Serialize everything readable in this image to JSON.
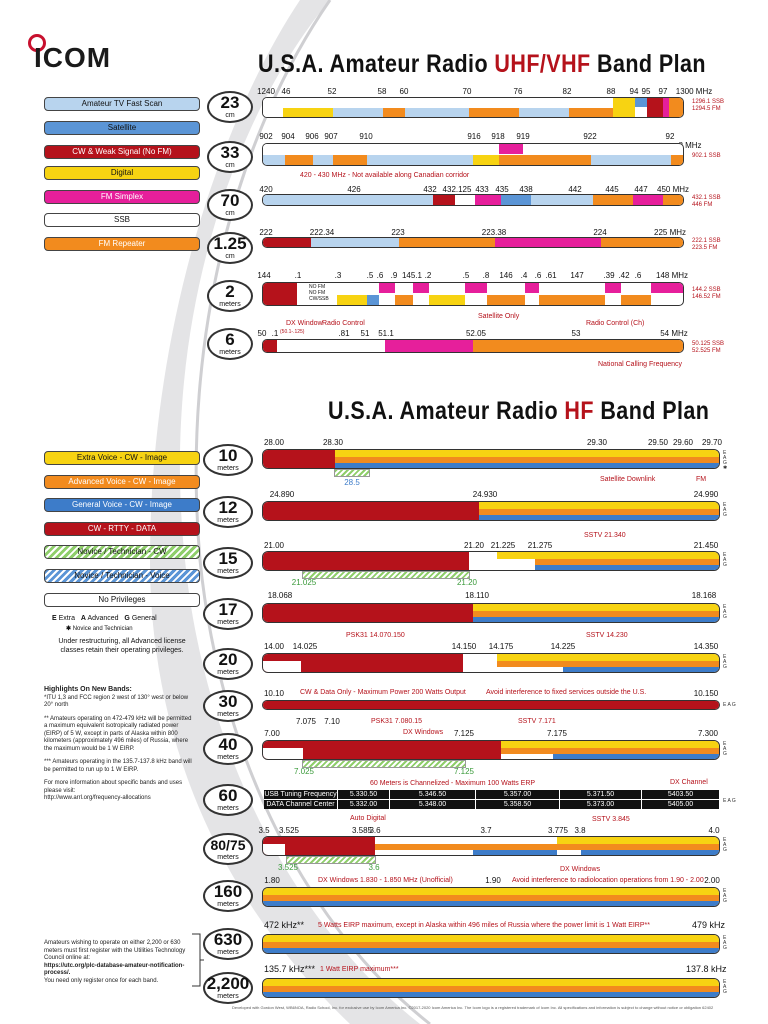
{
  "brand": {
    "logo": "ICOM"
  },
  "uhf_title": {
    "pre": "U.S.A. Amateur Radio ",
    "hl": "UHF/VHF",
    "post": " Band Plan"
  },
  "hf_title": {
    "pre": "U.S.A. Amateur Radio ",
    "hl": "HF",
    "post": " Band Plan"
  },
  "colors": {
    "tv": "#b8d4ee",
    "sat": "#5b95d6",
    "cw": "#b5121b",
    "digital": "#f7d312",
    "fm": "#e61f9b",
    "ssb": "#ffffff",
    "rep": "#f28b1e",
    "extra": "#f7d312",
    "adv": "#f28b1e",
    "gen": "#3d7cc9",
    "novice": "#8fce6b"
  },
  "uhf_legend": [
    "Amateur TV Fast Scan",
    "Satellite",
    "CW & Weak Signal (No FM)",
    "Digital",
    "FM Simplex",
    "SSB",
    "FM Repeater"
  ],
  "hf_legend": [
    "Extra Voice - CW - Image",
    "Advanced Voice - CW - Image",
    "General Voice - CW - Image",
    "CW - RTTY - DATA",
    "Novice / Technician - CW",
    "Novice / Technician - Voice",
    "No Privileges"
  ],
  "class_key": {
    "e": "E",
    "e_label": "Extra",
    "a": "A",
    "a_label": "Advanced",
    "g": "G",
    "g_label": "General",
    "star": "✱",
    "star_label": "Novice and Technician"
  },
  "restructure_note": "Under restructuring, all Advanced license classes retain their operating privileges.",
  "highlights": {
    "heading": "Highlights On New Bands:",
    "p1": "*ITU 1,3 and FCC region 2 west of 130° west or below 20° north",
    "p2": "** Amateurs operating on 472-479 kHz will be permitted a maximum equivalent isotropically radiated power (EIRP) of 5 W, except in parts of Alaska within 800 kilometers (approximately 496 miles) of Russia, where the maximum would be 1 W EIRP.",
    "p3": "*** Amateurs operating in the 135.7-137.8 kHz band will be permitted to run up to 1 W EIRP.",
    "p4": "For more information about specific bands and uses please visit:",
    "url": "http://www.arrl.org/frequency-allocations"
  },
  "register_note": {
    "p1": "Amateurs wishing to operate on either 2,200 or 630 meters must first register with the Utilities Technology Council online at:",
    "url": "https://utc.org/plc-database-amateur-notification-process/.",
    "p2": "You need only register once for each band."
  },
  "uhf_bands": [
    {
      "n": "23",
      "u": "cm",
      "ticks": [
        "1240",
        "46",
        "52",
        "58",
        "60",
        "70",
        "76",
        "82",
        "88",
        "94",
        "95",
        "97",
        "1300 MHz"
      ],
      "side": [
        "1296.1 SSB",
        "1294.5 FM"
      ]
    },
    {
      "n": "33",
      "u": "cm",
      "ticks": [
        "902",
        "904",
        "906",
        "907",
        "910",
        "916",
        "918",
        "919",
        "922",
        "92",
        "8 MHz"
      ],
      "side": [
        "902.1 SSB"
      ]
    },
    {
      "n": "70",
      "u": "cm",
      "ticks": [
        "420",
        "426",
        "432",
        "432.125",
        "433",
        "435",
        "438",
        "442",
        "445",
        "447",
        "450 MHz"
      ],
      "side": [
        "432.1 SSB",
        "446 FM"
      ],
      "note": "420 - 430 MHz - Not available along Canadian corridor"
    },
    {
      "n": "1.25",
      "u": "cm",
      "ticks": [
        "222",
        "222.34",
        "223",
        "223.38",
        "224",
        "225 MHz"
      ],
      "side": [
        "222.1 SSB",
        "223.5 FM"
      ]
    },
    {
      "n": "2",
      "u": "meters",
      "ticks": [
        "144",
        ".1",
        ".3",
        ".5",
        ".6",
        ".9",
        "145.1",
        ".2",
        ".5",
        ".8",
        "146",
        ".4",
        ".6",
        ".61",
        "147",
        ".39",
        ".42",
        ".6",
        "148 MHz"
      ],
      "side": [
        "144.2 SSB",
        "146.52 FM"
      ],
      "inner": [
        "NO FM",
        "NO FM",
        "CW/SSB"
      ],
      "note": "Satellite Only"
    },
    {
      "n": "6",
      "u": "meters",
      "ticks": [
        "50",
        ".1",
        ".81",
        "51",
        "51.1",
        "52.05",
        "53",
        "54 MHz"
      ],
      "side": [
        "50.125 SSB",
        "52.525 FM"
      ],
      "notes": [
        "DX Window",
        "(50.1-.125)",
        "Radio Control",
        "Radio Control (Ch)",
        "National Calling Frequency"
      ]
    }
  ],
  "hf_bands": [
    {
      "n": "10",
      "ticks": [
        "28.00",
        "28.30",
        "29.30",
        "29.50",
        "29.60",
        "29.70"
      ],
      "notes": [
        "28.5",
        "Satellite Downlink",
        "FM"
      ]
    },
    {
      "n": "12",
      "ticks": [
        "24.890",
        "24.930",
        "24.990"
      ]
    },
    {
      "n": "15",
      "ticks": [
        "21.00",
        "21.20",
        "21.225",
        "21.275",
        "21.450",
        "21.025",
        "21.20"
      ],
      "notes": [
        "SSTV 21.340"
      ]
    },
    {
      "n": "17",
      "ticks": [
        "18.068",
        "18.110",
        "18.168"
      ]
    },
    {
      "n": "20",
      "ticks": [
        "14.00",
        "14.025",
        "14.150",
        "14.175",
        "14.225",
        "14.350"
      ],
      "notes": [
        "PSK31 14.070.150",
        "SSTV 14.230"
      ]
    },
    {
      "n": "30",
      "ticks": [
        "10.10",
        "10.150"
      ],
      "notes": [
        "CW & Data Only - Maximum Power 200 Watts Output",
        "Avoid interference to fixed services outside the U.S."
      ]
    },
    {
      "n": "40",
      "ticks": [
        "7.00",
        "7.075",
        "7.10",
        "7.125",
        "7.175",
        "7.300",
        "7.025",
        "7.125"
      ],
      "notes": [
        "PSK31 7.080.15",
        "DX Windows",
        "SSTV 7.171"
      ]
    },
    {
      "n": "60",
      "ticks": [],
      "notes": [
        "60 Meters is Channelized - Maximum 100 Watts ERP",
        "DX Channel"
      ],
      "rows": [
        [
          "USB Tuning Frequency",
          "5.330.50",
          "5.346.50",
          "5.357.00",
          "5.371.50",
          "5403.50"
        ],
        [
          "DATA Channel Center",
          "5.332.00",
          "5.348.00",
          "5.358.50",
          "5.373.00",
          "5405.00"
        ]
      ]
    },
    {
      "n": "80/75",
      "ticks": [
        "3.5",
        "3.525",
        "3.585",
        "3.6",
        "3.7",
        "3.775",
        "3.8",
        "4.0",
        "3.525",
        "3.6"
      ],
      "notes": [
        "Auto Digital",
        "SSTV 3.845",
        "DX Windows"
      ]
    },
    {
      "n": "160",
      "ticks": [
        "1.80",
        "1.90",
        "2.00"
      ],
      "notes": [
        "DX Windows 1.830 - 1.850 MHz (Unofficial)",
        "Avoid interference to radiolocation operations from 1.90 - 2.00"
      ]
    },
    {
      "n": "630",
      "ticks": [
        "472 kHz**",
        "479 kHz"
      ],
      "notes": [
        "5 Watts EIRP maximum, except in Alaska within 496 miles of Russia where the power limit is 1 Watt EIRP**"
      ]
    },
    {
      "n": "2,200",
      "ticks": [
        "135.7 kHz***",
        "137.8 kHz"
      ],
      "notes": [
        "1 Watt EIRP maximum***"
      ]
    }
  ],
  "unit_meters": "meters",
  "footer": "Developed with Gordon West, WB6NOA, Radio School, Inc. for exclusive use by Icom America Inc. ©2017-2020 Icom America Inc. The Icom logo is a registered trademark of Icom Inc. All specifications and information is subject to change without notice or obligation 62402"
}
